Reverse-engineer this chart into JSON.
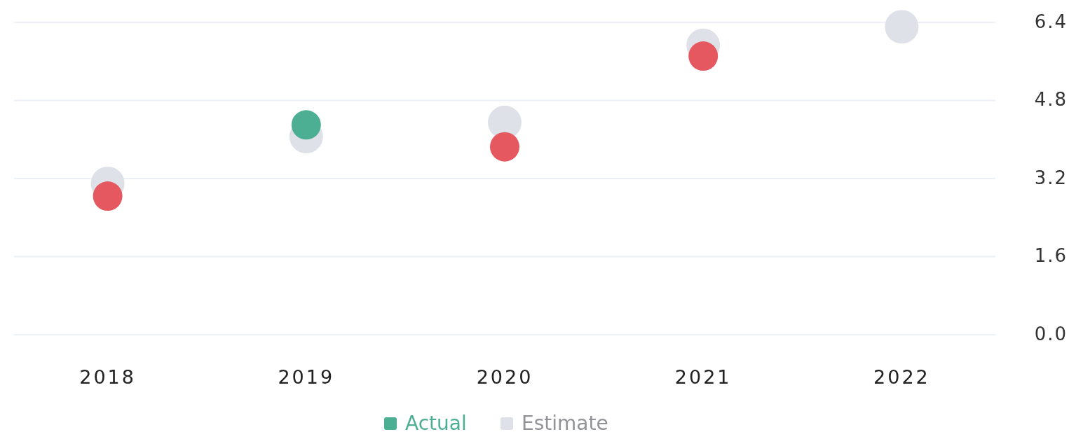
{
  "chart_data": {
    "type": "scatter",
    "categories": [
      "2018",
      "2019",
      "2020",
      "2021",
      "2022"
    ],
    "series": [
      {
        "name": "Estimate",
        "color": "#dfe1e8",
        "values": [
          3.1,
          4.06,
          4.35,
          5.93,
          6.31
        ]
      },
      {
        "name": "Actual",
        "color": "#4caf94",
        "colors": [
          "#e5585f",
          "#4caf94",
          "#e5585f",
          "#e5585f",
          null
        ],
        "values": [
          2.84,
          4.3,
          3.85,
          5.71,
          null
        ]
      }
    ],
    "ylim": [
      0,
      6.4
    ],
    "yticks": [
      {
        "value": 0,
        "label": "0.0"
      },
      {
        "value": 1.6,
        "label": "1.6"
      },
      {
        "value": 3.2,
        "label": "3.2"
      },
      {
        "value": 4.8,
        "label": "4.8"
      },
      {
        "value": 6.4,
        "label": "6.4"
      }
    ],
    "grid": "y",
    "legend": "bottom",
    "marker": "circle"
  }
}
